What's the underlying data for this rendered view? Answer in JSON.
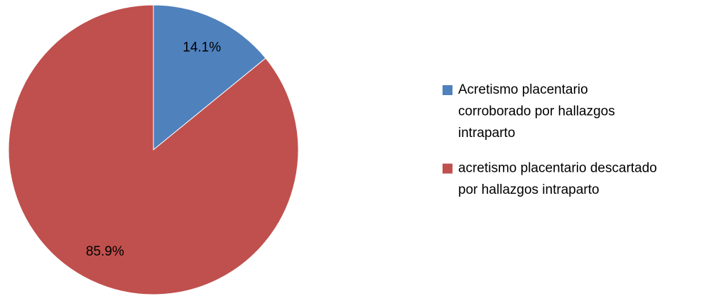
{
  "chart_data": {
    "type": "pie",
    "categories": [
      "Acretismo placentario corroborado por hallazgos intraparto",
      "acretismo placentario descartado por hallazgos intraparto"
    ],
    "values": [
      14.1,
      85.9
    ],
    "value_labels": [
      "14.1%",
      "85.9%"
    ],
    "colors": [
      "#4f81bd",
      "#c0504d"
    ],
    "legend": "right"
  }
}
